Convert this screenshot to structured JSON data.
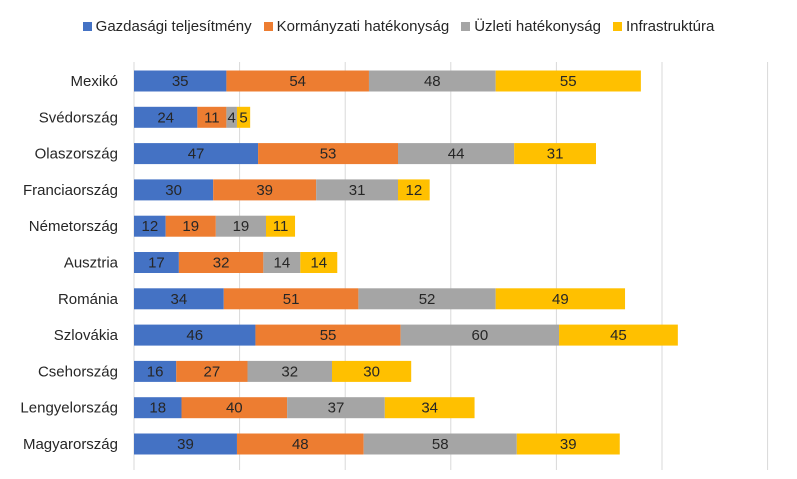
{
  "chart_data": {
    "type": "bar",
    "orientation": "horizontal",
    "stacked": true,
    "categories": [
      "Mexikó",
      "Svédország",
      "Olaszország",
      "Franciaország",
      "Németország",
      "Ausztria",
      "Románia",
      "Szlovákia",
      "Csehország",
      "Lengyelország",
      "Magyarország"
    ],
    "series": [
      {
        "name": "Gazdasági teljesítmény",
        "color": "#4472C4",
        "values": [
          35,
          24,
          47,
          30,
          12,
          17,
          34,
          46,
          16,
          18,
          39
        ]
      },
      {
        "name": "Kormányzati hatékonyság",
        "color": "#ED7D31",
        "values": [
          54,
          11,
          53,
          39,
          19,
          32,
          51,
          55,
          27,
          40,
          48
        ]
      },
      {
        "name": "Üzleti hatékonyság",
        "color": "#A5A5A5",
        "values": [
          48,
          4,
          44,
          31,
          19,
          14,
          52,
          60,
          32,
          37,
          58
        ]
      },
      {
        "name": "Infrastruktúra",
        "color": "#FFC000",
        "values": [
          55,
          5,
          31,
          12,
          11,
          14,
          49,
          45,
          30,
          34,
          39
        ]
      }
    ],
    "xlim": [
      0,
      240
    ],
    "grid": true,
    "legend": "top"
  }
}
